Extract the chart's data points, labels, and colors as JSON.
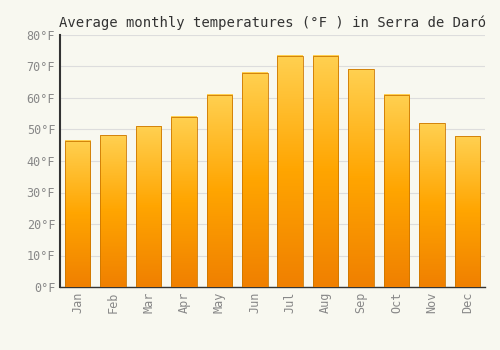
{
  "title": "Average monthly temperatures (°F ) in Serra de Daró",
  "months": [
    "Jan",
    "Feb",
    "Mar",
    "Apr",
    "May",
    "Jun",
    "Jul",
    "Aug",
    "Sep",
    "Oct",
    "Nov",
    "Dec"
  ],
  "values": [
    46.4,
    48.2,
    51.1,
    54.0,
    61.0,
    68.0,
    73.4,
    73.4,
    69.1,
    61.0,
    52.0,
    47.8
  ],
  "bar_color": "#FFA500",
  "bar_color_top": "#FFD050",
  "bar_color_bottom": "#F08000",
  "ylim": [
    0,
    80
  ],
  "yticks": [
    0,
    10,
    20,
    30,
    40,
    50,
    60,
    70,
    80
  ],
  "background_color": "#F8F8F0",
  "grid_color": "#DDDDDD",
  "title_fontsize": 10,
  "tick_fontsize": 8.5,
  "tick_color": "#888888"
}
